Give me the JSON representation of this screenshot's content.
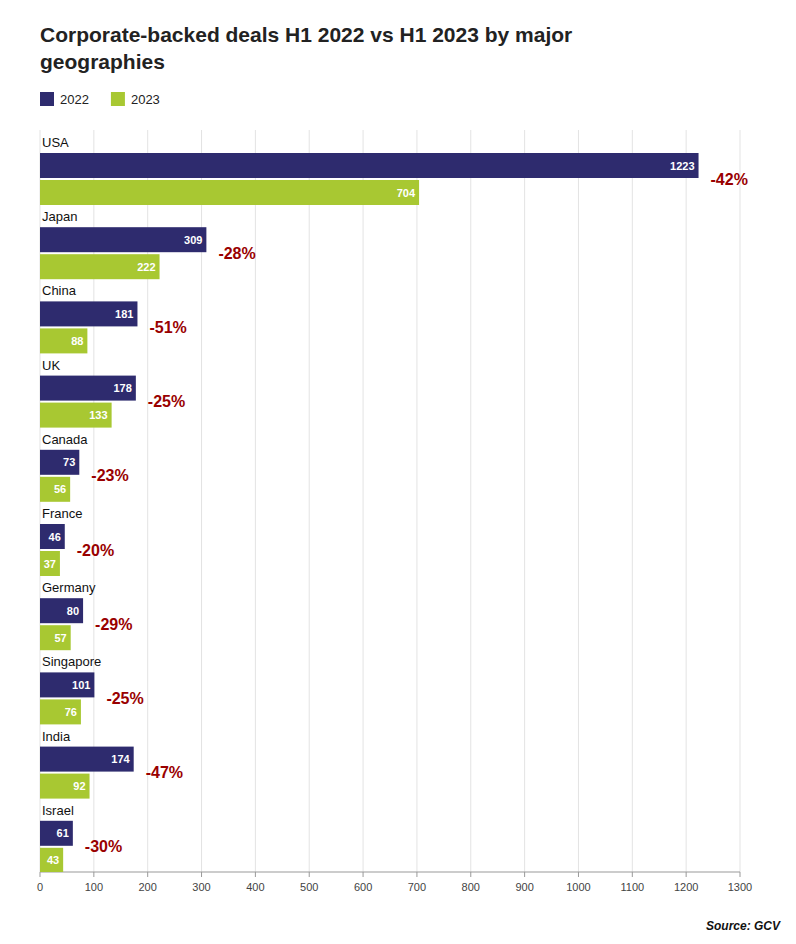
{
  "chart_data": {
    "type": "bar",
    "orientation": "horizontal",
    "title": "Corporate-backed deals H1 2022 vs H1 2023 by major\ngeographies",
    "categories": [
      "USA",
      "Japan",
      "China",
      "UK",
      "Canada",
      "France",
      "Germany",
      "Singapore",
      "India",
      "Israel"
    ],
    "series": [
      {
        "name": "2022",
        "color": "#2e2b6e",
        "values": [
          1223,
          309,
          181,
          178,
          73,
          46,
          80,
          101,
          174,
          61
        ]
      },
      {
        "name": "2023",
        "color": "#a8c832",
        "values": [
          704,
          222,
          88,
          133,
          56,
          37,
          57,
          76,
          92,
          43
        ]
      }
    ],
    "annotations": [
      {
        "text": "-42%",
        "color": "#990000"
      },
      {
        "text": "-28%",
        "color": "#990000"
      },
      {
        "text": "-51%",
        "color": "#990000"
      },
      {
        "text": "-25%",
        "color": "#990000"
      },
      {
        "text": "-23%",
        "color": "#990000"
      },
      {
        "text": "-20%",
        "color": "#990000"
      },
      {
        "text": "-29%",
        "color": "#990000"
      },
      {
        "text": "-25%",
        "color": "#990000"
      },
      {
        "text": "-47%",
        "color": "#990000"
      },
      {
        "text": "-30%",
        "color": "#990000"
      }
    ],
    "source": "Source: GCV",
    "xlim": [
      0,
      1300
    ],
    "xticks": [
      0,
      100,
      200,
      300,
      400,
      500,
      600,
      700,
      800,
      900,
      1000,
      1100,
      1200,
      1300
    ],
    "grid": true,
    "legend": "top-left",
    "data_labels": true
  }
}
